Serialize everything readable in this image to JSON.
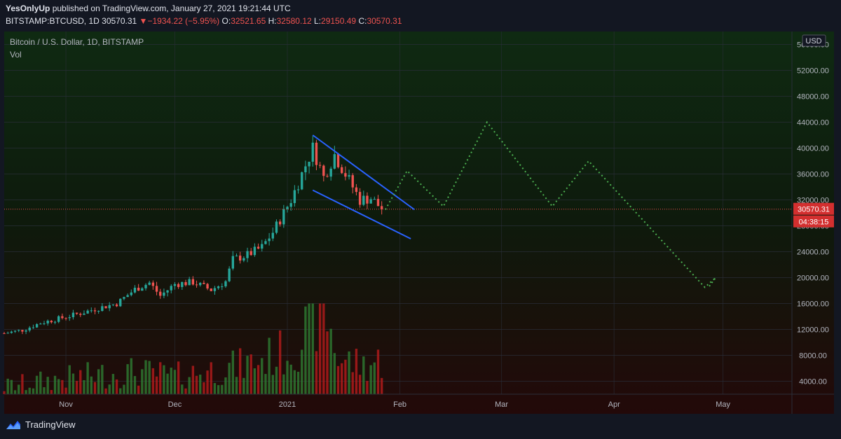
{
  "header": {
    "author": "YesOnlyUp",
    "published_text": "published on TradingView.com, January 27, 2021 19:21:44 UTC",
    "symbol": "BITSTAMP:BTCUSD, 1D",
    "last": "30570.31",
    "change": "−1934.22 (−5.95%)",
    "open_label": "O:",
    "open": "32521.65",
    "high_label": "H:",
    "high": "32580.12",
    "low_label": "L:",
    "low": "29150.49",
    "close_label": "C:",
    "close": "30570.31",
    "down_arrow": "▼"
  },
  "legend": {
    "title": "Bitcoin / U.S. Dollar, 1D, BITSTAMP",
    "volume": "Vol"
  },
  "price_axis": {
    "currency": "USD",
    "last_price_tag": "30570.31",
    "countdown_tag": "04:38:15"
  },
  "footer": {
    "brand": "TradingView"
  },
  "colors": {
    "up": "#26a69a",
    "down": "#ef5350",
    "vol_up": "#2e7d32",
    "vol_down": "#b71c1c",
    "wedge": "#2962ff",
    "projection": "#4caf50",
    "last_tag": "#d32f2f"
  },
  "chart_data": {
    "type": "candlestick",
    "title": "Bitcoin / U.S. Dollar, 1D, BITSTAMP",
    "ylim": [
      2000,
      58000
    ],
    "y_ticks": [
      4000,
      8000,
      12000,
      16000,
      20000,
      24000,
      28000,
      32000,
      36000,
      40000,
      44000,
      48000,
      52000,
      56000
    ],
    "x_ticks": [
      {
        "label": "Nov",
        "date": "2020-11-01"
      },
      {
        "label": "Dec",
        "date": "2020-12-01"
      },
      {
        "label": "2021",
        "date": "2021-01-01"
      },
      {
        "label": "Feb",
        "date": "2021-02-01"
      },
      {
        "label": "Mar",
        "date": "2021-03-01"
      },
      {
        "label": "Apr",
        "date": "2021-04-01"
      },
      {
        "label": "May",
        "date": "2021-05-01"
      }
    ],
    "xlim": [
      "2020-10-15",
      "2021-05-20"
    ],
    "last_price": 30570.31,
    "price_path": [
      [
        "2020-10-15",
        11400
      ],
      [
        "2020-10-20",
        11900
      ],
      [
        "2020-10-25",
        13000
      ],
      [
        "2020-10-31",
        13800
      ],
      [
        "2020-11-05",
        14500
      ],
      [
        "2020-11-10",
        15300
      ],
      [
        "2020-11-15",
        16000
      ],
      [
        "2020-11-20",
        18200
      ],
      [
        "2020-11-24",
        19200
      ],
      [
        "2020-11-27",
        17200
      ],
      [
        "2020-12-01",
        19000
      ],
      [
        "2020-12-06",
        19300
      ],
      [
        "2020-12-11",
        18100
      ],
      [
        "2020-12-15",
        19400
      ],
      [
        "2020-12-17",
        22800
      ],
      [
        "2020-12-21",
        23500
      ],
      [
        "2020-12-25",
        24700
      ],
      [
        "2020-12-28",
        27000
      ],
      [
        "2021-01-02",
        32000
      ],
      [
        "2021-01-08",
        40000
      ],
      [
        "2021-01-11",
        35500
      ],
      [
        "2021-01-14",
        39000
      ],
      [
        "2021-01-17",
        36000
      ],
      [
        "2021-01-21",
        32000
      ],
      [
        "2021-01-24",
        32300
      ],
      [
        "2021-01-27",
        30570
      ]
    ],
    "volume_path": [
      [
        "2020-10-15",
        3200
      ],
      [
        "2020-11-01",
        4500
      ],
      [
        "2020-11-20",
        5500
      ],
      [
        "2020-12-01",
        4800
      ],
      [
        "2020-12-20",
        6500
      ],
      [
        "2021-01-03",
        9000
      ],
      [
        "2021-01-11",
        16000
      ],
      [
        "2021-01-15",
        7500
      ],
      [
        "2021-01-22",
        6500
      ],
      [
        "2021-01-27",
        7200
      ]
    ],
    "wedge_upper": [
      [
        "2021-01-08",
        42000
      ],
      [
        "2021-02-05",
        30500
      ]
    ],
    "wedge_lower": [
      [
        "2021-01-08",
        33500
      ],
      [
        "2021-02-04",
        26000
      ]
    ],
    "projection": [
      [
        "2021-01-28",
        30500
      ],
      [
        "2021-02-03",
        36500
      ],
      [
        "2021-02-13",
        31000
      ],
      [
        "2021-02-25",
        44000
      ],
      [
        "2021-03-15",
        31000
      ],
      [
        "2021-03-25",
        38000
      ],
      [
        "2021-04-26",
        18500
      ],
      [
        "2021-04-29",
        20000
      ],
      [
        "2021-04-27",
        18500
      ]
    ]
  }
}
